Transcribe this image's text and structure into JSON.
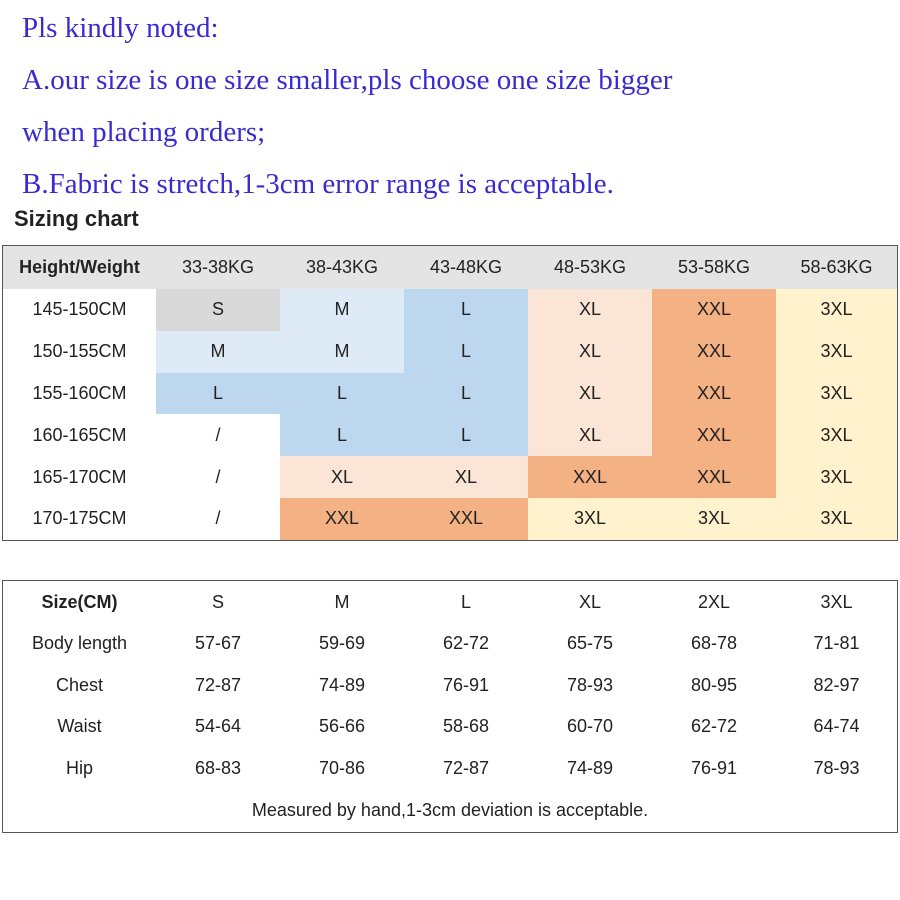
{
  "notes": [
    "Pls kindly noted:",
    "A.our size is one size smaller,pls choose one size bigger",
    "when placing orders;",
    "B.Fabric is stretch,1-3cm error range is acceptable."
  ],
  "sizing_title": "Sizing chart",
  "table1": {
    "header": [
      "Height/Weight",
      "33-38KG",
      "38-43KG",
      "43-48KG",
      "48-53KG",
      "53-58KG",
      "58-63KG"
    ],
    "header_fill": "#e4e4e4",
    "rows": [
      [
        "145-150CM",
        "S",
        "M",
        "L",
        "XL",
        "XXL",
        "3XL"
      ],
      [
        "150-155CM",
        "M",
        "M",
        "L",
        "XL",
        "XXL",
        "3XL"
      ],
      [
        "155-160CM",
        "L",
        "L",
        "L",
        "XL",
        "XXL",
        "3XL"
      ],
      [
        "160-165CM",
        "/",
        "L",
        "L",
        "XL",
        "XXL",
        "3XL"
      ],
      [
        "165-170CM",
        "/",
        "XL",
        "XL",
        "XXL",
        "XXL",
        "3XL"
      ],
      [
        "170-175CM",
        "/",
        "XXL",
        "XXL",
        "3XL",
        "3XL",
        "3XL"
      ]
    ],
    "fills": [
      [
        "#d9d9d9",
        "#deebf7",
        "#bdd7ee",
        "#fbe5d6",
        "#f4b183",
        "#fff2cc"
      ],
      [
        "#deebf7",
        "#deebf7",
        "#bdd7ee",
        "#fbe5d6",
        "#f4b183",
        "#fff2cc"
      ],
      [
        "#bdd7ee",
        "#bdd7ee",
        "#bdd7ee",
        "#fbe5d6",
        "#f4b183",
        "#fff2cc"
      ],
      [
        "#ffffff",
        "#bdd7ee",
        "#bdd7ee",
        "#fbe5d6",
        "#f4b183",
        "#fff2cc"
      ],
      [
        "#ffffff",
        "#fbe5d6",
        "#fbe5d6",
        "#f4b183",
        "#f4b183",
        "#fff2cc"
      ],
      [
        "#ffffff",
        "#f4b183",
        "#f4b183",
        "#fff2cc",
        "#fff2cc",
        "#fff2cc"
      ]
    ]
  },
  "table2": {
    "header": [
      "Size(CM)",
      "S",
      "M",
      "L",
      "XL",
      "2XL",
      "3XL"
    ],
    "rows": [
      [
        "Body length",
        "57-67",
        "59-69",
        "62-72",
        "65-75",
        "68-78",
        "71-81"
      ],
      [
        "Chest",
        "72-87",
        "74-89",
        "76-91",
        "78-93",
        "80-95",
        "82-97"
      ],
      [
        "Waist",
        "54-64",
        "56-66",
        "58-68",
        "60-70",
        "62-72",
        "64-74"
      ],
      [
        "Hip",
        "68-83",
        "70-86",
        "72-87",
        "74-89",
        "76-91",
        "78-93"
      ]
    ],
    "footer": "Measured by hand,1-3cm deviation is acceptable."
  }
}
